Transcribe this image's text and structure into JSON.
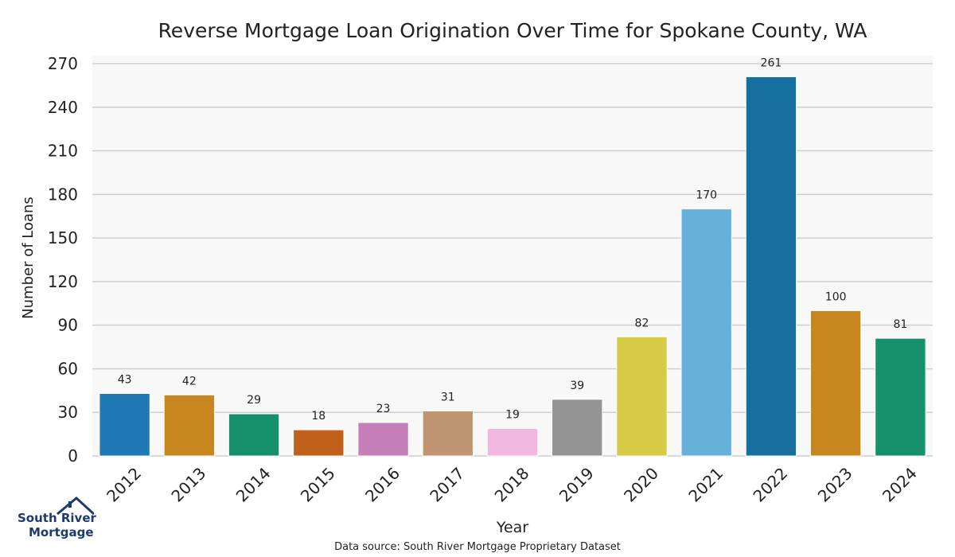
{
  "chart_data": {
    "type": "bar",
    "title": "Reverse Mortgage Loan Origination Over Time for Spokane County, WA",
    "xlabel": "Year",
    "ylabel": "Number of Loans",
    "categories": [
      "2012",
      "2013",
      "2014",
      "2015",
      "2016",
      "2017",
      "2018",
      "2019",
      "2020",
      "2021",
      "2022",
      "2023",
      "2024"
    ],
    "values": [
      43,
      42,
      29,
      18,
      23,
      31,
      19,
      39,
      82,
      170,
      261,
      100,
      81
    ],
    "colors": [
      "#1f77b4",
      "#c8871e",
      "#168f6b",
      "#c0601b",
      "#c47fb8",
      "#c09572",
      "#f1b8e0",
      "#949494",
      "#d6cb45",
      "#66b0dc",
      "#176f9f",
      "#c8871e",
      "#168f6b"
    ],
    "ylim": [
      0,
      270
    ],
    "yticks": [
      0,
      30,
      60,
      90,
      120,
      150,
      180,
      210,
      240,
      270
    ],
    "grid": true,
    "legend": "none"
  },
  "footer": {
    "source": "Data source: South River Mortgage Proprietary Dataset"
  },
  "logo": {
    "line1": "South River",
    "line2": "Mortgage"
  }
}
